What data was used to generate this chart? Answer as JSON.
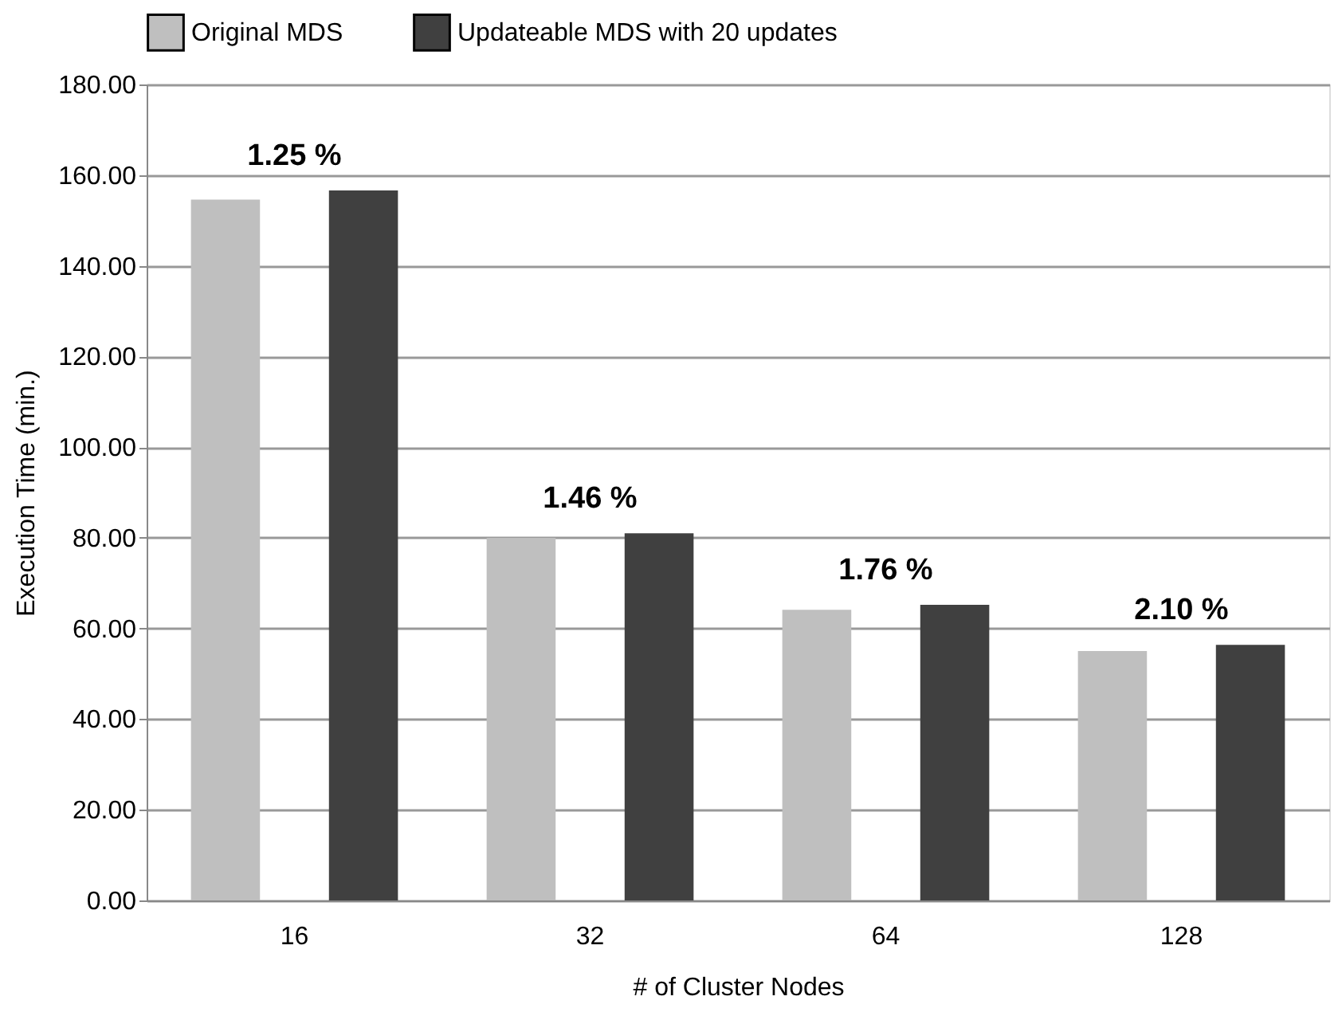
{
  "chart_data": {
    "type": "bar",
    "xlabel": "# of Cluster Nodes",
    "ylabel": "Execution Time (min.)",
    "categories": [
      "16",
      "32",
      "64",
      "128"
    ],
    "series": [
      {
        "name": "Original MDS",
        "color": "#bfbfbf",
        "values": [
          154.6,
          80.0,
          64.1,
          55.0
        ]
      },
      {
        "name": "Updateable MDS with 20 updates",
        "color": "#404040",
        "values": [
          156.6,
          81.0,
          65.2,
          56.4
        ]
      }
    ],
    "ylim": [
      0,
      180
    ],
    "yticks": [
      {
        "value": 0,
        "label": "0.00"
      },
      {
        "value": 20,
        "label": "20.00"
      },
      {
        "value": 40,
        "label": "40.00"
      },
      {
        "value": 60,
        "label": "60.00"
      },
      {
        "value": 80,
        "label": "80.00"
      },
      {
        "value": 100,
        "label": "100.00"
      },
      {
        "value": 120,
        "label": "120.00"
      },
      {
        "value": 140,
        "label": "140.00"
      },
      {
        "value": 160,
        "label": "160.00"
      },
      {
        "value": 180,
        "label": "180.00"
      }
    ],
    "annotations": [
      "1.25 %",
      "1.46 %",
      "1.76 %",
      "2.10 %"
    ],
    "grid": "y",
    "legend": "top"
  }
}
